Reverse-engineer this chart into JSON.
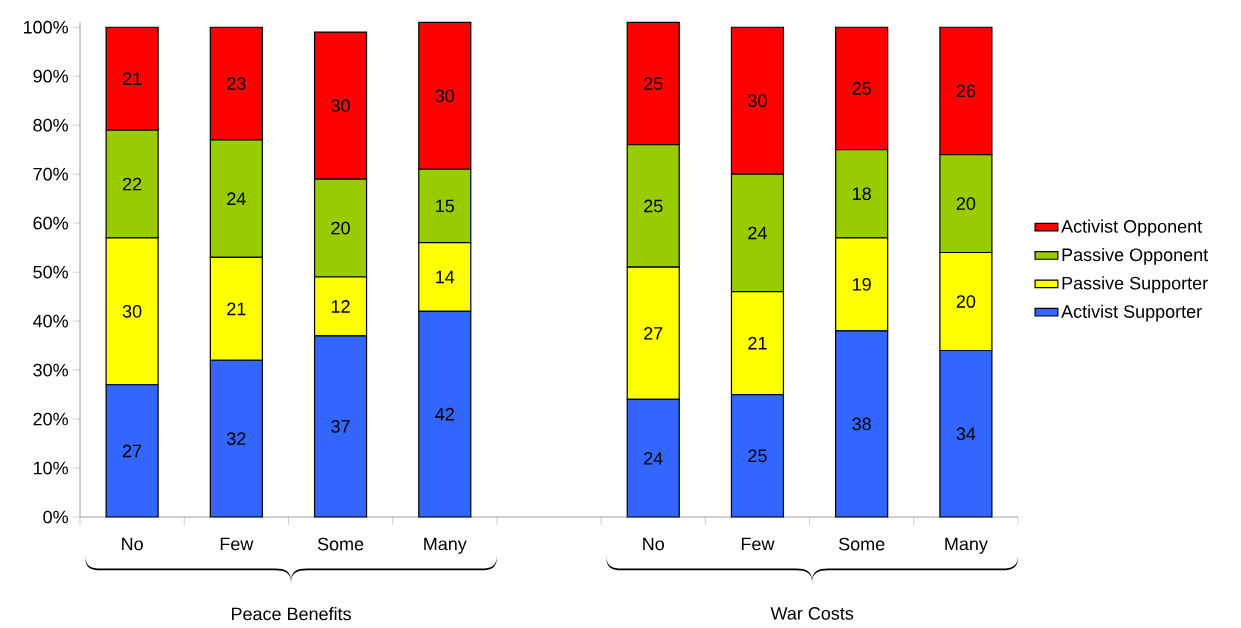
{
  "chart_data": {
    "type": "bar",
    "stacked": true,
    "categories": [
      "No",
      "Few",
      "Some",
      "Many",
      null,
      "No",
      "Few",
      "Some",
      "Many"
    ],
    "series": [
      {
        "name": "Activist Supporter",
        "color": "#3366ff",
        "values": [
          27,
          32,
          37,
          42,
          null,
          24,
          25,
          38,
          34
        ]
      },
      {
        "name": "Passive Supporter",
        "color": "#ffff00",
        "values": [
          30,
          21,
          12,
          14,
          null,
          27,
          21,
          19,
          20
        ]
      },
      {
        "name": "Passive Opponent",
        "color": "#99cc00",
        "values": [
          22,
          24,
          20,
          15,
          null,
          25,
          24,
          18,
          20
        ]
      },
      {
        "name": "Activist Opponent",
        "color": "#ff0000",
        "values": [
          21,
          23,
          30,
          30,
          null,
          25,
          30,
          25,
          26
        ]
      }
    ],
    "ylim": [
      0,
      101
    ],
    "yticks": [
      {
        "value": 0,
        "label": "0%"
      },
      {
        "value": 10,
        "label": "10%"
      },
      {
        "value": 20,
        "label": "20%"
      },
      {
        "value": 30,
        "label": "30%"
      },
      {
        "value": 40,
        "label": "40%"
      },
      {
        "value": 50,
        "label": "50%"
      },
      {
        "value": 60,
        "label": "60%"
      },
      {
        "value": 70,
        "label": "70%"
      },
      {
        "value": 80,
        "label": "80%"
      },
      {
        "value": 90,
        "label": "90%"
      },
      {
        "value": 100,
        "label": "100%"
      }
    ],
    "annotations": [
      "Peace Benefits",
      "War Costs"
    ],
    "data_labels": true,
    "grid": false,
    "legend": "right"
  }
}
